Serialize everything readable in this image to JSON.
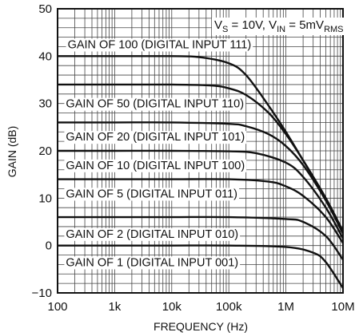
{
  "chart_data": {
    "type": "line",
    "xlabel": "FREQUENCY (Hz)",
    "ylabel": "GAIN (dB)",
    "xscale": "log",
    "xlim": [
      100,
      10000000
    ],
    "ylim": [
      -10,
      50
    ],
    "grid": true,
    "x_ticks": [
      {
        "value": 100,
        "label": "100"
      },
      {
        "value": 1000,
        "label": "1k"
      },
      {
        "value": 10000,
        "label": "10k"
      },
      {
        "value": 100000,
        "label": "100k"
      },
      {
        "value": 1000000,
        "label": "1M"
      },
      {
        "value": 10000000,
        "label": "10M"
      }
    ],
    "y_ticks": [
      {
        "value": -10,
        "label": "−10"
      },
      {
        "value": 0,
        "label": "0"
      },
      {
        "value": 10,
        "label": "10"
      },
      {
        "value": 20,
        "label": "20"
      },
      {
        "value": 30,
        "label": "30"
      },
      {
        "value": 40,
        "label": "40"
      },
      {
        "value": 50,
        "label": "50"
      }
    ],
    "conditions": {
      "vs_main": "V",
      "vs_sub": "S",
      "vs_val": " = 10V, ",
      "vin_main": "V",
      "vin_sub": "IN",
      "vin_val": " = 5mV",
      "vin_unit_sub": "RMS"
    },
    "series": [
      {
        "name": "GAIN OF 100 (DIGITAL INPUT 111)",
        "x": [
          100,
          1000,
          10000,
          30000,
          100000,
          200000,
          500000,
          1000000,
          2000000,
          5000000,
          10000000
        ],
        "y": [
          40,
          40,
          40,
          39.8,
          38.5,
          36,
          29.5,
          24,
          18,
          10,
          3
        ]
      },
      {
        "name": "GAIN OF 50 (DIGITAL INPUT 110)",
        "x": [
          100,
          1000,
          10000,
          50000,
          100000,
          200000,
          500000,
          1000000,
          2000000,
          5000000,
          10000000
        ],
        "y": [
          34,
          34,
          34,
          33.8,
          33.2,
          31.8,
          28,
          23.5,
          18,
          10,
          3
        ]
      },
      {
        "name": "GAIN OF 20 (DIGITAL INPUT 101)",
        "x": [
          100,
          1000,
          10000,
          100000,
          200000,
          500000,
          1000000,
          2000000,
          5000000,
          10000000
        ],
        "y": [
          26,
          26,
          26,
          25.7,
          25.2,
          23.5,
          21,
          17,
          9.5,
          2.5
        ]
      },
      {
        "name": "GAIN OF 10 (DIGITAL INPUT 100)",
        "x": [
          100,
          1000,
          10000,
          100000,
          300000,
          1000000,
          2000000,
          5000000,
          10000000
        ],
        "y": [
          20,
          20,
          20,
          19.9,
          19.5,
          17.5,
          14.5,
          8,
          1.5
        ]
      },
      {
        "name": "GAIN OF 5 (DIGITAL INPUT 011)",
        "x": [
          100,
          1000,
          10000,
          100000,
          500000,
          1000000,
          2000000,
          5000000,
          10000000
        ],
        "y": [
          14,
          14,
          14,
          14,
          13.5,
          12.5,
          10.5,
          6,
          0.5
        ]
      },
      {
        "name": "GAIN OF 2 (DIGITAL INPUT 010)",
        "x": [
          100,
          1000,
          10000,
          100000,
          1000000,
          2000000,
          5000000,
          10000000
        ],
        "y": [
          6,
          6,
          6,
          6,
          5.6,
          5,
          2,
          -3
        ]
      },
      {
        "name": "GAIN OF 1 (DIGITAL INPUT 001)",
        "x": [
          100,
          1000,
          10000,
          100000,
          1000000,
          3000000,
          5000000,
          10000000
        ],
        "y": [
          0,
          0,
          0,
          0,
          -0.3,
          -1.5,
          -3.5,
          -9
        ]
      }
    ],
    "labels": [
      {
        "series": 0,
        "text": "GAIN OF 100 (DIGITAL INPUT 111)",
        "at_x": 150,
        "at_y": 42.5
      },
      {
        "series": 1,
        "text": "GAIN OF 50 (DIGITAL INPUT 110)",
        "at_x": 140,
        "at_y": 30
      },
      {
        "series": 2,
        "text": "GAIN OF 20 (DIGITAL INPUT 101)",
        "at_x": 140,
        "at_y": 23
      },
      {
        "series": 3,
        "text": "GAIN OF 10 (DIGITAL INPUT 100)",
        "at_x": 140,
        "at_y": 17
      },
      {
        "series": 4,
        "text": "GAIN OF 5 (DIGITAL INPUT 011)",
        "at_x": 140,
        "at_y": 11
      },
      {
        "series": 5,
        "text": "GAIN OF 2 (DIGITAL INPUT 010)",
        "at_x": 140,
        "at_y": 2.5
      },
      {
        "series": 6,
        "text": "GAIN OF 1 (DIGITAL INPUT 001)",
        "at_x": 140,
        "at_y": -3.5
      }
    ]
  }
}
